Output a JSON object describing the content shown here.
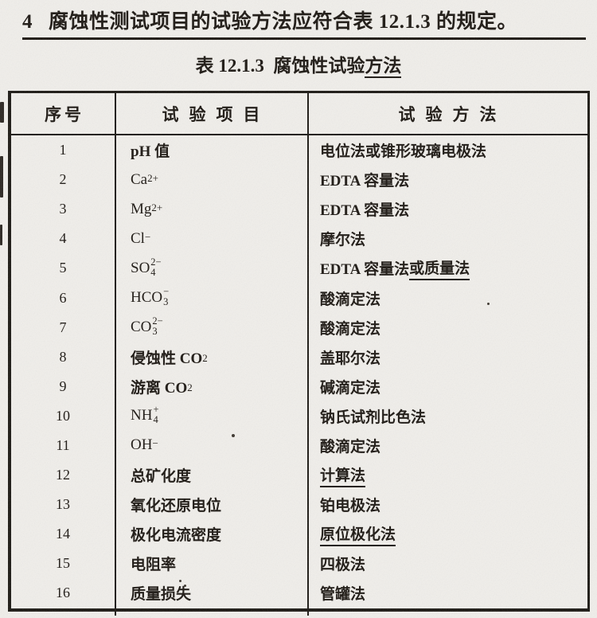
{
  "heading": {
    "number": "4",
    "text": "腐蚀性测试项目的试验方法应符合表 12.1.3 的规定。"
  },
  "table_title": {
    "prefix": "表 12.1.3  腐蚀性试验",
    "underlined": "方法"
  },
  "table": {
    "headers": [
      "序号",
      "试验项目",
      "试验方法"
    ],
    "rows": [
      {
        "no": "1",
        "item": [
          {
            "t": "pH 值"
          }
        ],
        "method": [
          {
            "t": "电位法或锥形玻璃电极法"
          }
        ]
      },
      {
        "no": "2",
        "item": [
          {
            "t": "Ca"
          },
          {
            "sup": "2+"
          }
        ],
        "method": [
          {
            "t": "EDTA 容量法"
          }
        ]
      },
      {
        "no": "3",
        "item": [
          {
            "t": "Mg"
          },
          {
            "sup": "2+"
          }
        ],
        "method": [
          {
            "t": "EDTA 容量法"
          }
        ]
      },
      {
        "no": "4",
        "item": [
          {
            "t": "Cl"
          },
          {
            "sup": "−"
          }
        ],
        "method": [
          {
            "t": "摩尔法"
          }
        ]
      },
      {
        "no": "5",
        "item": [
          {
            "t": "SO"
          },
          {
            "stack": {
              "sup": "2−",
              "sub": "4"
            }
          }
        ],
        "method": [
          {
            "t": "EDTA 容量法"
          },
          {
            "t": "或质量法",
            "u": true
          }
        ]
      },
      {
        "no": "6",
        "item": [
          {
            "t": "HCO"
          },
          {
            "stack": {
              "sup": "−",
              "sub": "3"
            }
          }
        ],
        "method": [
          {
            "t": "酸滴定法"
          }
        ]
      },
      {
        "no": "7",
        "item": [
          {
            "t": "CO"
          },
          {
            "stack": {
              "sup": "2−",
              "sub": "3"
            }
          }
        ],
        "method": [
          {
            "t": "酸滴定法"
          }
        ]
      },
      {
        "no": "8",
        "item": [
          {
            "t": "侵蚀性 CO"
          },
          {
            "sub": "2"
          }
        ],
        "method": [
          {
            "t": "盖耶尔法"
          }
        ]
      },
      {
        "no": "9",
        "item": [
          {
            "t": "游离 CO"
          },
          {
            "sub": "2"
          }
        ],
        "method": [
          {
            "t": "碱滴定法"
          }
        ]
      },
      {
        "no": "10",
        "item": [
          {
            "t": "NH"
          },
          {
            "stack": {
              "sup": "+",
              "sub": "4"
            }
          }
        ],
        "method": [
          {
            "t": "钠氏试剂比色法"
          }
        ]
      },
      {
        "no": "11",
        "item": [
          {
            "t": "OH"
          },
          {
            "sup": "−"
          }
        ],
        "method": [
          {
            "t": "酸滴定法"
          }
        ]
      },
      {
        "no": "12",
        "item": [
          {
            "t": "总矿化度"
          }
        ],
        "method": [
          {
            "t": "计算法",
            "u": true
          }
        ]
      },
      {
        "no": "13",
        "item": [
          {
            "t": "氧化还原电位"
          }
        ],
        "method": [
          {
            "t": "铂电极法"
          }
        ]
      },
      {
        "no": "14",
        "item": [
          {
            "t": "极化电流密度"
          }
        ],
        "method": [
          {
            "t": "原位极化法",
            "u": true
          }
        ]
      },
      {
        "no": "15",
        "item": [
          {
            "t": "电阻率"
          }
        ],
        "method": [
          {
            "t": "四极法"
          }
        ]
      },
      {
        "no": "16",
        "item": [
          {
            "t": "质量损失"
          }
        ],
        "method": [
          {
            "t": "管罐法"
          }
        ]
      }
    ]
  },
  "colors": {
    "paper": "#f1efeb",
    "ink": "#1b1611",
    "border": "#1a1712"
  }
}
